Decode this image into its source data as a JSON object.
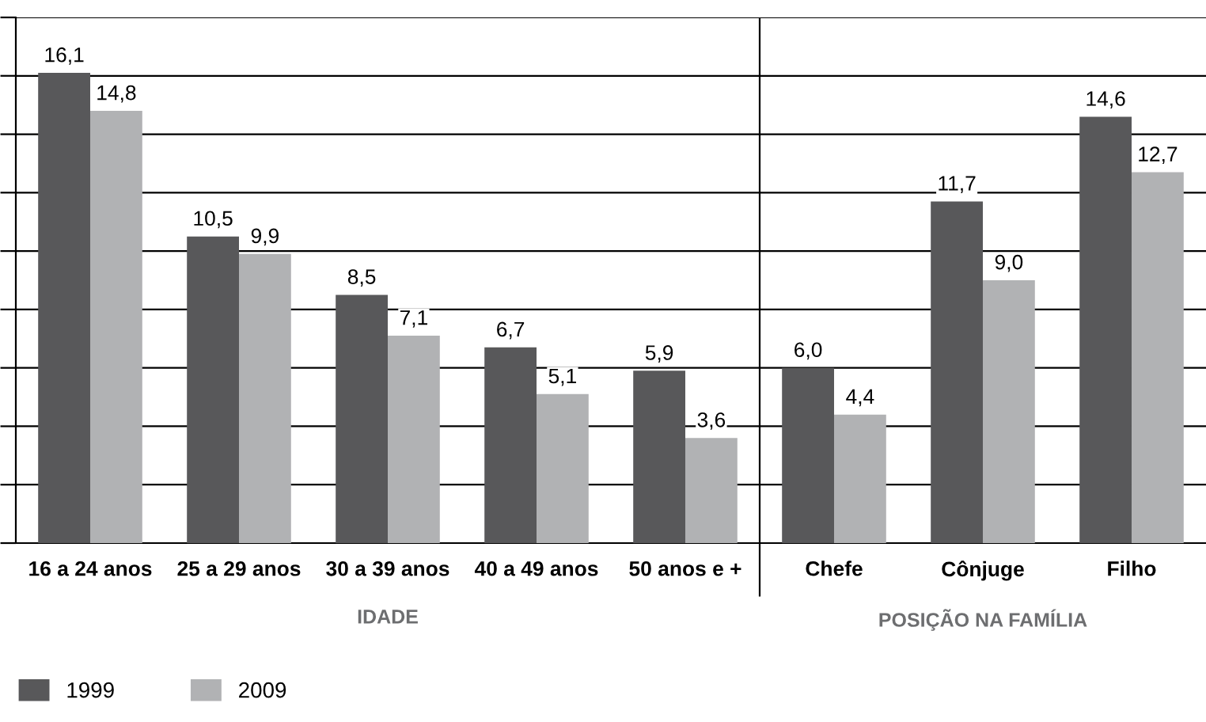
{
  "chart_data": {
    "type": "bar",
    "categories": [
      "16 a 24 anos",
      "25 a 29 anos",
      "30 a 39 anos",
      "40 a 49 anos",
      "50 anos e +",
      "Chefe",
      "Cônjuge",
      "Filho"
    ],
    "series": [
      {
        "name": "1999",
        "color": "#58585a",
        "values": [
          16.1,
          10.5,
          8.5,
          6.7,
          5.9,
          6.0,
          11.7,
          14.6
        ],
        "value_labels": [
          "16,1",
          "10,5",
          "8,5",
          "6,7",
          "5,9",
          "6,0",
          "11,7",
          "14,6"
        ]
      },
      {
        "name": "2009",
        "color": "#b1b2b4",
        "values": [
          14.8,
          9.9,
          7.1,
          5.1,
          3.6,
          4.4,
          9.0,
          12.7
        ],
        "value_labels": [
          "14,8",
          "9,9",
          "7,1",
          "5,1",
          "3,6",
          "4,4",
          "9,0",
          "12,7"
        ]
      }
    ],
    "ylim": [
      0,
      18
    ],
    "yticks": [
      {
        "value": 0,
        "label": null
      },
      {
        "value": 2,
        "label": null
      },
      {
        "value": 4,
        "label": null
      },
      {
        "value": 6,
        "label": null
      },
      {
        "value": 8,
        "label": null
      },
      {
        "value": 10,
        "label": null
      },
      {
        "value": 12,
        "label": null
      },
      {
        "value": 14,
        "label": null
      },
      {
        "value": 16,
        "label": null
      },
      {
        "value": 18,
        "label": null
      }
    ],
    "grid": "y",
    "tick_labels": "x",
    "legend": "bottom left",
    "annotations": [
      "IDADE",
      "POSIÇÃO NA FAMÍLIA"
    ]
  }
}
